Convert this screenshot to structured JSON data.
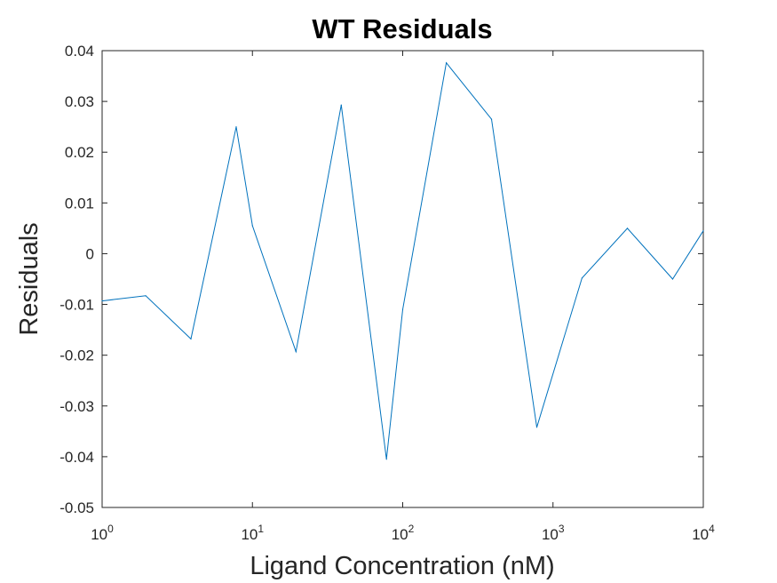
{
  "chart_data": {
    "type": "line",
    "title": "WT Residuals",
    "xlabel": "Ligand Concentration (nM)",
    "ylabel": "Residuals",
    "xscale": "log",
    "xlim": [
      1,
      10000
    ],
    "ylim": [
      -0.05,
      0.04
    ],
    "grid": false,
    "xticks": [
      {
        "base": "10",
        "exp": "0"
      },
      {
        "base": "10",
        "exp": "1"
      },
      {
        "base": "10",
        "exp": "2"
      },
      {
        "base": "10",
        "exp": "3"
      },
      {
        "base": "10",
        "exp": "4"
      }
    ],
    "yticks": [
      "-0.05",
      "-0.04",
      "-0.03",
      "-0.02",
      "-0.01",
      "0",
      "0.01",
      "0.02",
      "0.03",
      "0.04"
    ],
    "series": [
      {
        "color": "#0072BD",
        "x": [
          1,
          1.95,
          3.9,
          7.8,
          10,
          19.5,
          39,
          78,
          100,
          195,
          390,
          780,
          1560,
          3125,
          6250,
          10000
        ],
        "y": [
          -0.0093,
          -0.0083,
          -0.0168,
          0.025,
          0.0055,
          -0.0193,
          0.0293,
          -0.0405,
          -0.011,
          0.0376,
          0.0265,
          -0.0342,
          -0.0048,
          0.005,
          -0.005,
          0.0045
        ]
      }
    ]
  }
}
